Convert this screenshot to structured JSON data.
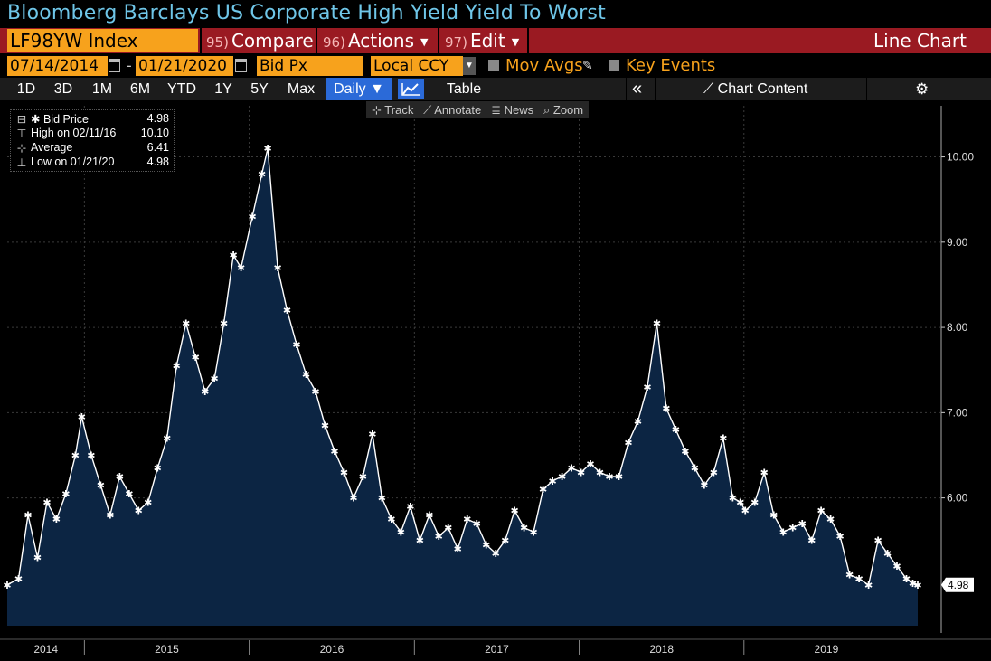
{
  "title": "Bloomberg Barclays US Corporate High Yield Yield To Worst",
  "toolbar": {
    "ticker": "LF98YW Index",
    "compare": {
      "num": "95)",
      "label": "Compare"
    },
    "actions": {
      "num": "96)",
      "label": "Actions"
    },
    "edit": {
      "num": "97)",
      "label": "Edit"
    },
    "view_label": "Line Chart"
  },
  "settings": {
    "start_date": "07/14/2014",
    "end_date": "01/21/2020",
    "field": "Bid Px",
    "currency": "Local CCY",
    "mov_avgs": "Mov Avgs",
    "key_events": "Key Events"
  },
  "ranges": {
    "items": [
      "1D",
      "3D",
      "1M",
      "6M",
      "YTD",
      "1Y",
      "5Y",
      "Max"
    ],
    "frequency": "Daily",
    "table": "Table",
    "chart_content": "Chart Content"
  },
  "tools": {
    "track": "Track",
    "annotate": "Annotate",
    "news": "News",
    "zoom": "Zoom"
  },
  "legend": {
    "rows": [
      {
        "label": "Bid Price",
        "value": "4.98"
      },
      {
        "label": "High on 02/11/16",
        "value": "10.10"
      },
      {
        "label": "Average",
        "value": "6.41"
      },
      {
        "label": "Low on 01/21/20",
        "value": "4.98"
      }
    ]
  },
  "colors": {
    "title": "#6fc6e8",
    "ticker_bg": "#f7a21c",
    "command_bar": "#9a1a22",
    "active_button": "#2b6ad8",
    "area_fill": "#0c2543",
    "line": "#ffffff",
    "last_value_tag": "#ffffff"
  },
  "chart_data": {
    "type": "area",
    "series": [
      {
        "name": "Bid Price"
      }
    ],
    "x": [
      "2014-07-14",
      "2014-08-08",
      "2014-08-29",
      "2014-09-19",
      "2014-10-10",
      "2014-10-31",
      "2014-11-21",
      "2014-12-12",
      "2014-12-26",
      "2015-01-16",
      "2015-02-06",
      "2015-02-27",
      "2015-03-20",
      "2015-04-10",
      "2015-05-01",
      "2015-05-22",
      "2015-06-12",
      "2015-07-03",
      "2015-07-24",
      "2015-08-14",
      "2015-09-04",
      "2015-09-25",
      "2015-10-16",
      "2015-11-06",
      "2015-11-27",
      "2015-12-14",
      "2016-01-08",
      "2016-01-29",
      "2016-02-11",
      "2016-03-04",
      "2016-03-25",
      "2016-04-15",
      "2016-05-06",
      "2016-05-27",
      "2016-06-17",
      "2016-07-08",
      "2016-07-29",
      "2016-08-19",
      "2016-09-09",
      "2016-09-30",
      "2016-10-21",
      "2016-11-11",
      "2016-12-02",
      "2016-12-23",
      "2017-01-13",
      "2017-02-03",
      "2017-02-24",
      "2017-03-17",
      "2017-04-07",
      "2017-04-28",
      "2017-05-19",
      "2017-06-09",
      "2017-06-30",
      "2017-07-21",
      "2017-08-11",
      "2017-09-01",
      "2017-09-22",
      "2017-10-13",
      "2017-11-03",
      "2017-11-24",
      "2017-12-15",
      "2018-01-05",
      "2018-01-26",
      "2018-02-16",
      "2018-03-09",
      "2018-03-30",
      "2018-04-20",
      "2018-05-11",
      "2018-06-01",
      "2018-06-22",
      "2018-07-13",
      "2018-08-03",
      "2018-08-24",
      "2018-09-14",
      "2018-10-05",
      "2018-10-26",
      "2018-11-16",
      "2018-12-07",
      "2018-12-24",
      "2019-01-04",
      "2019-01-25",
      "2019-02-15",
      "2019-03-08",
      "2019-03-29",
      "2019-04-19",
      "2019-05-10",
      "2019-05-31",
      "2019-06-21",
      "2019-07-12",
      "2019-08-02",
      "2019-08-23",
      "2019-09-13",
      "2019-10-04",
      "2019-10-25",
      "2019-11-15",
      "2019-12-06",
      "2019-12-27",
      "2020-01-10",
      "2020-01-21"
    ],
    "values": [
      4.98,
      5.05,
      5.8,
      5.3,
      5.95,
      5.75,
      6.05,
      6.5,
      6.95,
      6.5,
      6.15,
      5.8,
      6.25,
      6.05,
      5.85,
      5.95,
      6.35,
      6.7,
      7.55,
      8.05,
      7.65,
      7.25,
      7.4,
      8.05,
      8.85,
      8.7,
      9.3,
      9.8,
      10.1,
      8.7,
      8.2,
      7.8,
      7.45,
      7.25,
      6.85,
      6.55,
      6.3,
      6.0,
      6.25,
      6.75,
      6.0,
      5.75,
      5.6,
      5.9,
      5.5,
      5.8,
      5.55,
      5.65,
      5.4,
      5.75,
      5.7,
      5.45,
      5.35,
      5.5,
      5.85,
      5.65,
      5.6,
      6.1,
      6.2,
      6.25,
      6.35,
      6.3,
      6.4,
      6.3,
      6.25,
      6.25,
      6.65,
      6.9,
      7.3,
      8.05,
      7.05,
      6.8,
      6.55,
      6.35,
      6.15,
      6.3,
      6.7,
      6.0,
      5.95,
      5.85,
      5.95,
      6.3,
      5.8,
      5.6,
      5.65,
      5.7,
      5.5,
      5.85,
      5.75,
      5.55,
      5.1,
      5.05,
      4.98,
      5.5,
      5.35,
      5.2,
      5.05,
      5.0,
      4.98
    ],
    "ylim": [
      4.5,
      10.6
    ],
    "yticks": [
      "6.00",
      "7.00",
      "8.00",
      "9.00",
      "10.00"
    ],
    "xticks": [
      "2014",
      "2015",
      "2016",
      "2017",
      "2018",
      "2019"
    ],
    "last_value_label": "4.98",
    "grid": true,
    "legend": "top-left"
  }
}
